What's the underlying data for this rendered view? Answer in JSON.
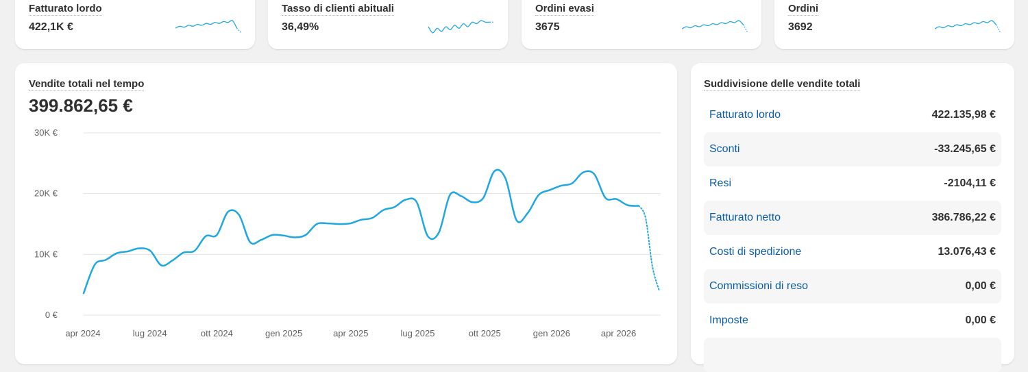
{
  "kpis": [
    {
      "title": "Fatturato lordo",
      "value": "422,1K €",
      "spark": [
        6,
        8,
        7,
        9,
        8,
        10,
        9,
        11,
        10,
        12,
        11,
        13,
        12,
        14,
        6,
        1
      ]
    },
    {
      "title": "Tasso di clienti abituali",
      "value": "36,49%",
      "spark": [
        9,
        5,
        8,
        6,
        9,
        7,
        10,
        8,
        11,
        9,
        12,
        11,
        13,
        12,
        12,
        12
      ]
    },
    {
      "title": "Ordini evasi",
      "value": "3675",
      "spark": [
        5,
        7,
        6,
        8,
        7,
        9,
        8,
        10,
        9,
        11,
        10,
        12,
        11,
        13,
        9,
        1
      ]
    },
    {
      "title": "Ordini",
      "value": "3692",
      "spark": [
        5,
        7,
        6,
        8,
        7,
        9,
        8,
        10,
        9,
        11,
        10,
        12,
        11,
        13,
        9,
        1
      ]
    }
  ],
  "sales": {
    "title": "Vendite totali nel tempo",
    "total": "399.862,65 €"
  },
  "chart_data": {
    "type": "line",
    "y_ticks": [
      "30K €",
      "20K €",
      "10K €",
      "0 €"
    ],
    "x_ticks": [
      "apr 2024",
      "lug 2024",
      "ott 2024",
      "gen 2025",
      "apr 2025",
      "lug 2025",
      "ott 2025",
      "gen 2026",
      "apr 2026"
    ],
    "ylim": [
      0,
      30000
    ],
    "x_range": [
      "2024-04",
      "2026-06"
    ],
    "series": [
      {
        "values": [
          3600,
          8300,
          9100,
          10200,
          10500,
          11000,
          10600,
          8200,
          9000,
          10300,
          10600,
          13000,
          13200,
          17000,
          16500,
          12000,
          12400,
          13200,
          13100,
          12800,
          13200,
          15000,
          15100,
          15000,
          15100,
          15700,
          16000,
          17300,
          17800,
          19000,
          18600,
          13000,
          13600,
          19800,
          19600,
          18600,
          19300,
          23700,
          22500,
          15600,
          16800,
          19800,
          20600,
          21300,
          21700,
          23500,
          23200,
          19300,
          19100,
          18100,
          18000
        ]
      },
      {
        "style": "dotted",
        "values": [
          18000,
          16000,
          8000,
          4000
        ]
      }
    ],
    "grid": true
  },
  "breakdown": {
    "title": "Suddivisione delle vendite totali",
    "rows": [
      {
        "label": "Fatturato lordo",
        "value": "422.135,98 €"
      },
      {
        "label": "Sconti",
        "value": "-33.245,65 €"
      },
      {
        "label": "Resi",
        "value": "-2104,11 €"
      },
      {
        "label": "Fatturato netto",
        "value": "386.786,22 €"
      },
      {
        "label": "Costi di spedizione",
        "value": "13.076,43 €"
      },
      {
        "label": "Commissioni di reso",
        "value": "0,00 €"
      },
      {
        "label": "Imposte",
        "value": "0,00 €"
      }
    ]
  },
  "colors": {
    "accent": "#1ea7e0",
    "link": "#0b5cad"
  }
}
